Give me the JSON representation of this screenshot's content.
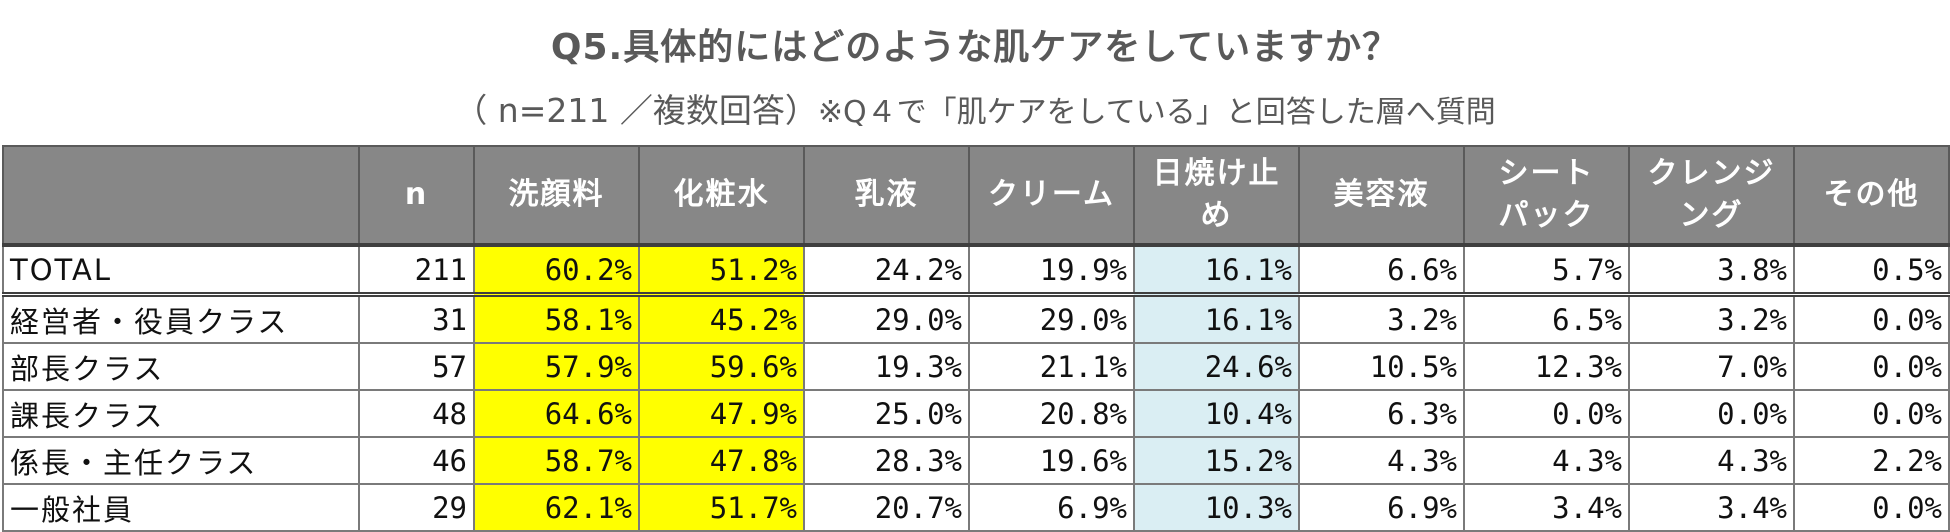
{
  "title": "Q5.具体的にはどのような肌ケアをしていますか？",
  "subtitle": "（ n=211 ／複数回答）",
  "subtitle_note": "※Q４で「肌ケアをしている」と回答した層へ質問",
  "colors": {
    "header": "#878787",
    "highlight_yellow": "#ffff00",
    "highlight_blue": "#daeef3"
  },
  "chart_data": {
    "type": "table",
    "columns": [
      {
        "label": "",
        "label2": ""
      },
      {
        "label": "n",
        "label2": ""
      },
      {
        "label": "洗顔料",
        "label2": ""
      },
      {
        "label": "化粧水",
        "label2": ""
      },
      {
        "label": "乳液",
        "label2": ""
      },
      {
        "label": "クリーム",
        "label2": ""
      },
      {
        "label": "日焼け止",
        "label2": "め"
      },
      {
        "label": "美容液",
        "label2": ""
      },
      {
        "label": "シート",
        "label2": "パック"
      },
      {
        "label": "クレンジ",
        "label2": "ング"
      },
      {
        "label": "その他",
        "label2": ""
      }
    ],
    "rows": [
      {
        "label": "TOTAL",
        "n": "211",
        "values": [
          "60.2%",
          "51.2%",
          "24.2%",
          "19.9%",
          "16.1%",
          "6.6%",
          "5.7%",
          "3.8%",
          "0.5%"
        ]
      },
      {
        "label": "経営者・役員クラス",
        "n": "31",
        "values": [
          "58.1%",
          "45.2%",
          "29.0%",
          "29.0%",
          "16.1%",
          "3.2%",
          "6.5%",
          "3.2%",
          "0.0%"
        ]
      },
      {
        "label": "部長クラス",
        "n": "57",
        "values": [
          "57.9%",
          "59.6%",
          "19.3%",
          "21.1%",
          "24.6%",
          "10.5%",
          "12.3%",
          "7.0%",
          "0.0%"
        ]
      },
      {
        "label": "課長クラス",
        "n": "48",
        "values": [
          "64.6%",
          "47.9%",
          "25.0%",
          "20.8%",
          "10.4%",
          "6.3%",
          "0.0%",
          "0.0%",
          "0.0%"
        ]
      },
      {
        "label": "係長・主任クラス",
        "n": "46",
        "values": [
          "58.7%",
          "47.8%",
          "28.3%",
          "19.6%",
          "15.2%",
          "4.3%",
          "4.3%",
          "4.3%",
          "2.2%"
        ]
      },
      {
        "label": "一般社員",
        "n": "29",
        "values": [
          "62.1%",
          "51.7%",
          "20.7%",
          "6.9%",
          "10.3%",
          "6.9%",
          "3.4%",
          "3.4%",
          "0.0%"
        ]
      }
    ],
    "highlight_yellow_columns": [
      0,
      1
    ],
    "highlight_blue_columns": [
      4
    ]
  }
}
